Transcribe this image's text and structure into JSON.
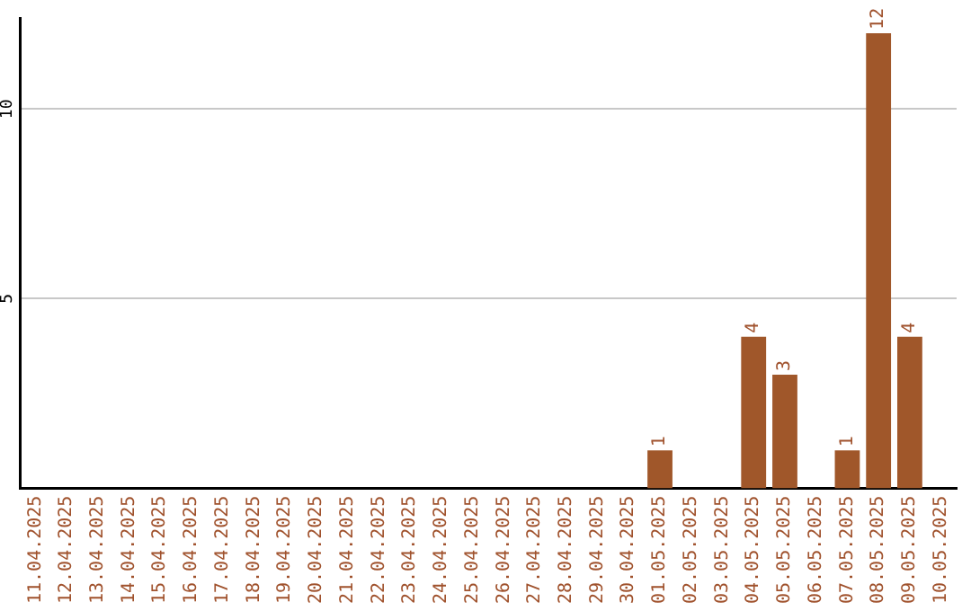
{
  "chart_data": {
    "type": "bar",
    "categories": [
      "11.04.2025",
      "12.04.2025",
      "13.04.2025",
      "14.04.2025",
      "15.04.2025",
      "16.04.2025",
      "17.04.2025",
      "18.04.2025",
      "19.04.2025",
      "20.04.2025",
      "21.04.2025",
      "22.04.2025",
      "23.04.2025",
      "24.04.2025",
      "25.04.2025",
      "26.04.2025",
      "27.04.2025",
      "28.04.2025",
      "29.04.2025",
      "30.04.2025",
      "01.05.2025",
      "02.05.2025",
      "03.05.2025",
      "04.05.2025",
      "05.05.2025",
      "06.05.2025",
      "07.05.2025",
      "08.05.2025",
      "09.05.2025",
      "10.05.2025"
    ],
    "values": [
      0,
      0,
      0,
      0,
      0,
      0,
      0,
      0,
      0,
      0,
      0,
      0,
      0,
      0,
      0,
      0,
      0,
      0,
      0,
      0,
      1,
      0,
      0,
      4,
      3,
      0,
      1,
      12,
      4,
      0
    ],
    "value_labels": [
      null,
      null,
      null,
      null,
      null,
      null,
      null,
      null,
      null,
      null,
      null,
      null,
      null,
      null,
      null,
      null,
      null,
      null,
      null,
      null,
      "1",
      null,
      null,
      "4",
      "3",
      null,
      "1",
      "12",
      "4",
      null
    ],
    "color": "#a0572a",
    "ylim": [
      0,
      12.4
    ],
    "yticks": [
      5,
      10
    ],
    "grid": "y",
    "legend": false
  }
}
